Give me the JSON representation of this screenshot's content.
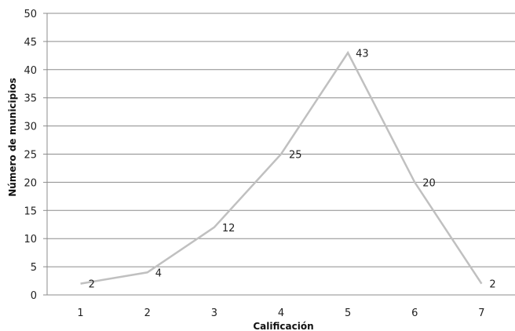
{
  "chart_data": {
    "type": "line",
    "title": "",
    "xlabel": "Calificación",
    "ylabel": "Número de municipios",
    "categories": [
      "1",
      "2",
      "3",
      "4",
      "5",
      "6",
      "7"
    ],
    "series": [
      {
        "values": [
          2,
          4,
          12,
          25,
          43,
          20,
          2
        ]
      }
    ],
    "ylim": [
      0,
      50
    ],
    "yticks": [
      0,
      5,
      10,
      15,
      20,
      25,
      30,
      35,
      40,
      45,
      50
    ],
    "grid": "horizontal",
    "legend": "none",
    "data_labels": true,
    "line_color": "#c0c0c0",
    "grid_color": "#8c8c8c"
  }
}
